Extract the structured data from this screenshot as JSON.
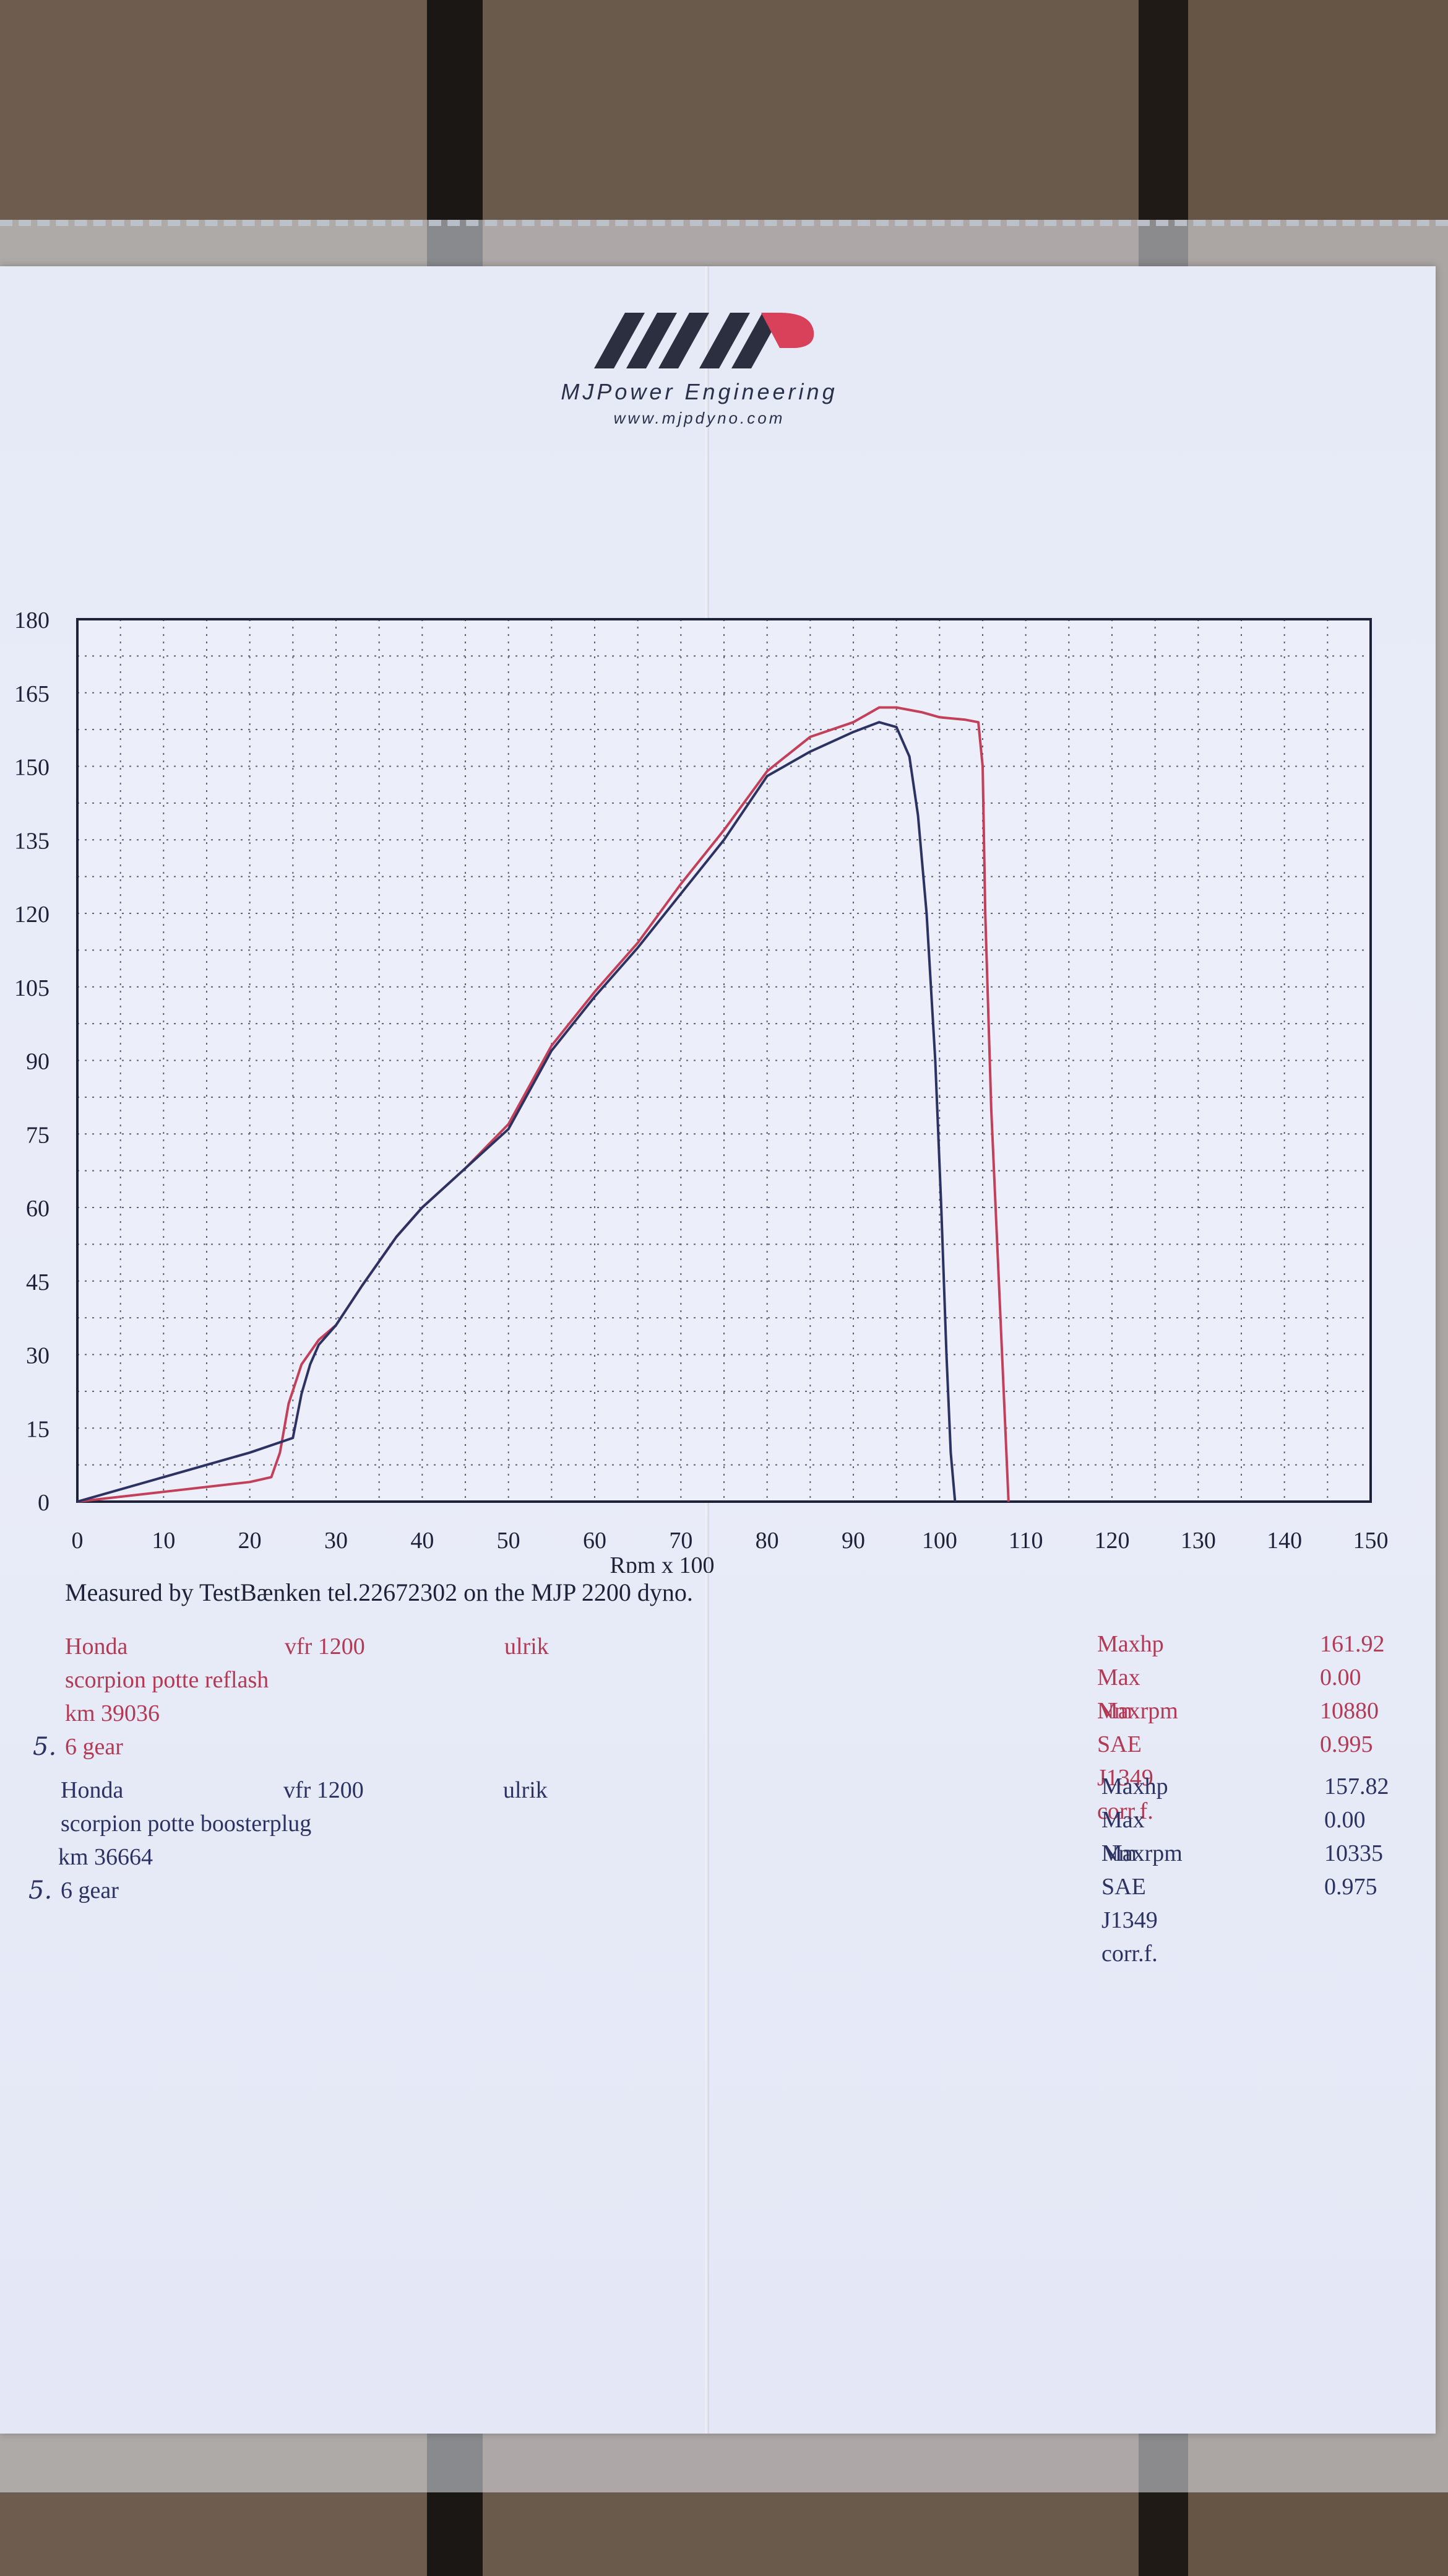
{
  "header": {
    "company": "MJPower Engineering",
    "website": "www.mjpdyno.com"
  },
  "chart_data": {
    "type": "line",
    "xlabel": "Rpm x 100",
    "ylabel": "",
    "xlim": [
      0,
      150
    ],
    "ylim": [
      0,
      180
    ],
    "x_ticks": [
      0,
      10,
      20,
      30,
      40,
      50,
      60,
      70,
      80,
      90,
      100,
      110,
      120,
      130,
      140,
      150
    ],
    "y_ticks": [
      0,
      15,
      30,
      45,
      60,
      75,
      90,
      105,
      120,
      135,
      150,
      165,
      180
    ],
    "grid": true,
    "series": [
      {
        "color": "#c2405a",
        "x": [
          0,
          10,
          20,
          22.5,
          23.5,
          24.5,
          26,
          28,
          30,
          33,
          37,
          40,
          45,
          50,
          55,
          60,
          65,
          70,
          75,
          80,
          85,
          90,
          93,
          95,
          98,
          100,
          103,
          104.5,
          105,
          105.3,
          106,
          107,
          108
        ],
        "y": [
          0,
          2,
          4,
          5,
          10,
          20,
          28,
          33,
          36,
          44,
          54,
          60,
          68,
          77,
          93,
          104,
          114,
          126,
          137,
          149,
          156,
          159,
          162,
          162,
          161,
          160,
          159.5,
          159,
          150,
          120,
          80,
          40,
          0
        ]
      },
      {
        "color": "#2c3262",
        "x": [
          0,
          10,
          20,
          25,
          26,
          27,
          28,
          30,
          33,
          37,
          40,
          45,
          50,
          55,
          60,
          65,
          70,
          75,
          80,
          85,
          90,
          93,
          95,
          96.5,
          97.5,
          98.5,
          99.5,
          100.2,
          100.8,
          101.3,
          101.8
        ],
        "y": [
          0,
          5,
          10,
          13,
          22,
          28,
          32,
          36,
          44,
          54,
          60,
          68,
          76,
          92,
          103,
          113,
          124,
          135,
          148,
          153,
          157,
          159,
          158,
          152,
          140,
          120,
          90,
          60,
          30,
          10,
          0
        ]
      }
    ]
  },
  "measurement_note": "Measured by TestBænken tel.22672302 on the MJP 2200 dyno.",
  "runs": [
    {
      "make": "Honda",
      "model": "vfr 1200",
      "rider": "ulrik",
      "setup": "scorpion potte reflash",
      "odometer": "km 39036",
      "gear_mark": "5.",
      "gear": "6 gear",
      "color": "#b33a55",
      "stats": [
        {
          "label": "Maxhp",
          "value": "161.92"
        },
        {
          "label": "Max Nm",
          "value": "0.00"
        },
        {
          "label": "Maxrpm",
          "value": "10880"
        },
        {
          "label": "SAE J1349 corr.f.",
          "value": "0.995"
        }
      ]
    },
    {
      "make": "Honda",
      "model": "vfr 1200",
      "rider": "ulrik",
      "setup": "scorpion potte boosterplug",
      "odometer": "km 36664",
      "gear_mark": "5.",
      "gear": "6 gear",
      "color": "#2c3262",
      "stats": [
        {
          "label": "Maxhp",
          "value": "157.82"
        },
        {
          "label": "Max Nm",
          "value": "0.00"
        },
        {
          "label": "Maxrpm",
          "value": "10335"
        },
        {
          "label": "SAE J1349 corr.f.",
          "value": "0.975"
        }
      ]
    }
  ]
}
